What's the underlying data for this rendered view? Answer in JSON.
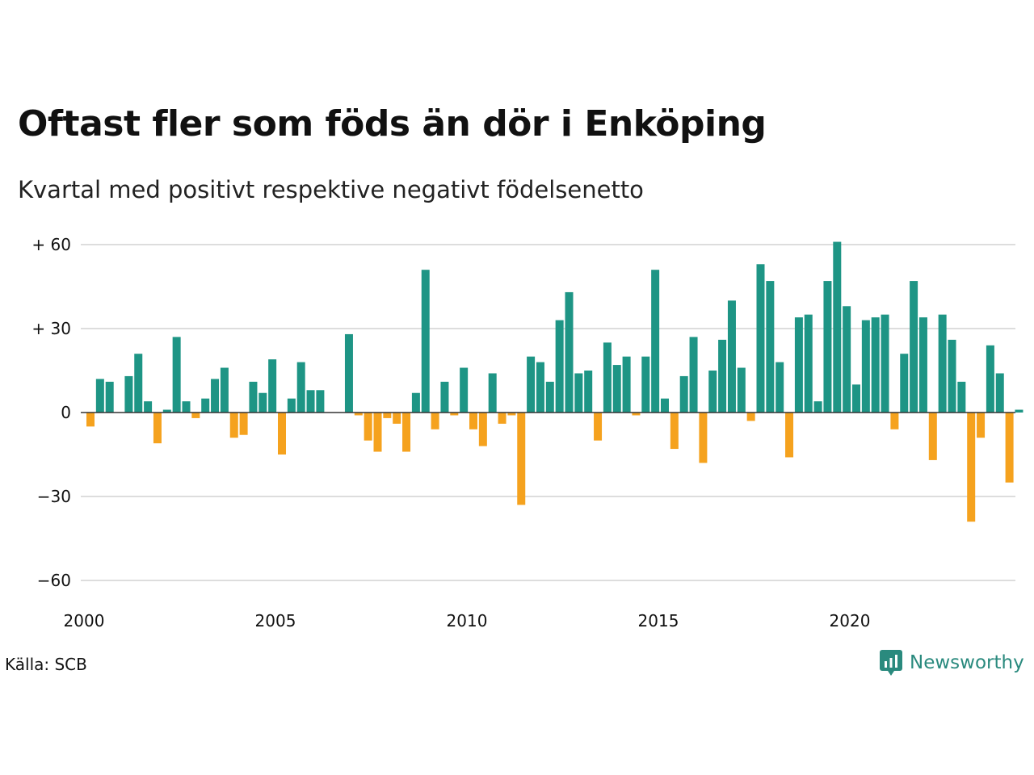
{
  "title": "Oftast fler som föds än dör i Enköping",
  "subtitle": "Kvartal med positivt respektive negativt födelsenetto",
  "source": "Källa: SCB",
  "brand": {
    "name": "Newsworthy",
    "icon": "newsworthy-logo-icon",
    "color": "#2a8a7e"
  },
  "chart_data": {
    "type": "bar",
    "x_start": "2000 Q1",
    "period": "quarter",
    "y_ticks": [
      60,
      30,
      0,
      -30,
      -60
    ],
    "y_tick_labels": [
      "+ 60",
      "+ 30",
      "0",
      "−30",
      "−60"
    ],
    "x_tick_labels": [
      "2000",
      "2005",
      "2010",
      "2015",
      "2020"
    ],
    "ylim": [
      -60,
      60
    ],
    "grid": true,
    "colors": {
      "positive": "#1e9585",
      "negative": "#f5a21e",
      "grid": "#dddddd",
      "zero": "#333333"
    },
    "values": [
      -5,
      12,
      11,
      0,
      13,
      21,
      4,
      -11,
      1,
      27,
      4,
      -2,
      5,
      12,
      16,
      -9,
      -8,
      11,
      7,
      19,
      -15,
      5,
      18,
      8,
      8,
      0,
      0,
      28,
      -1,
      -10,
      -14,
      -2,
      -4,
      -14,
      7,
      51,
      -6,
      11,
      -1,
      16,
      -6,
      -12,
      14,
      -4,
      -1,
      -33,
      20,
      18,
      11,
      33,
      43,
      14,
      15,
      -10,
      25,
      17,
      20,
      -1,
      20,
      51,
      5,
      -13,
      13,
      27,
      -18,
      15,
      26,
      40,
      16,
      -3,
      53,
      47,
      18,
      -16,
      34,
      35,
      4,
      47,
      61,
      38,
      10,
      33,
      34,
      35,
      -6,
      21,
      47,
      34,
      -17,
      35,
      26,
      11,
      -39,
      -9,
      24,
      14,
      -25,
      1
    ]
  }
}
